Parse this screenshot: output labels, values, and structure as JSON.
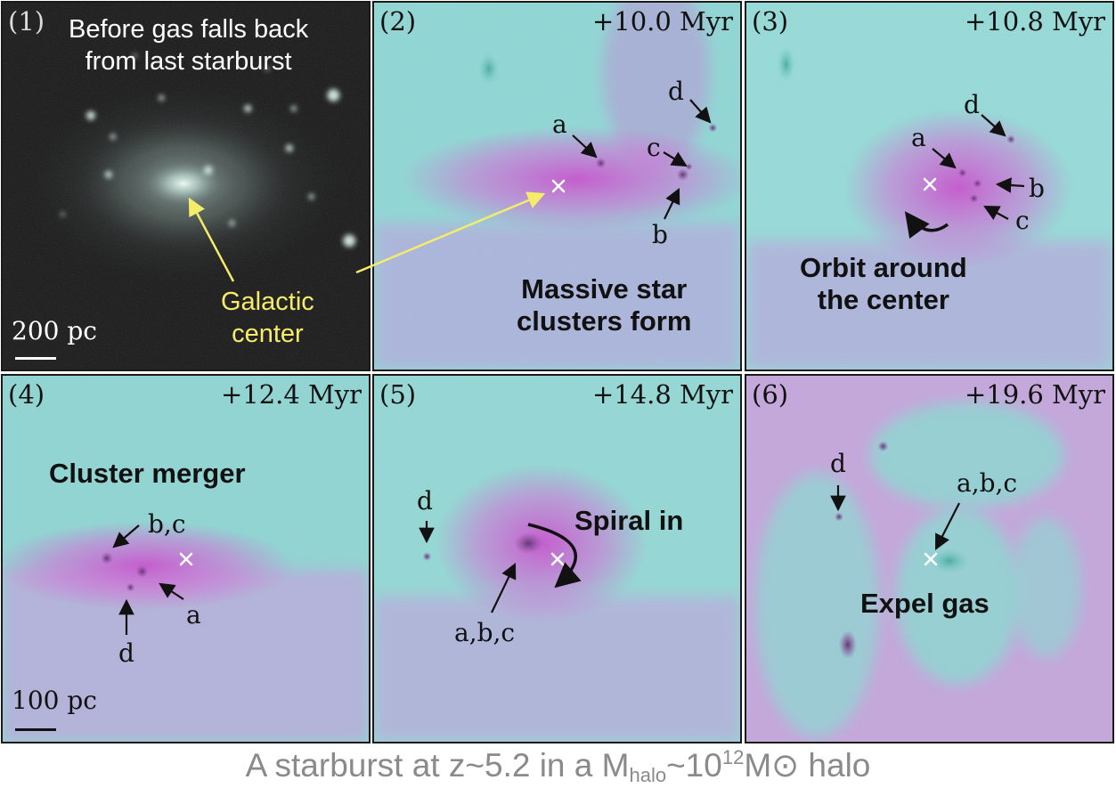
{
  "footer": {
    "prefix": "A starburst at z~5.2 in a M",
    "sub": "halo",
    "mid": "~10",
    "sup": "12",
    "suffix": "M⊙ halo"
  },
  "colors": {
    "gas_cyan": "#8fe0dc",
    "gas_magenta": "#d36ad8",
    "stars_bg": "#141414",
    "annotation_yellow": "#f5ec6a",
    "footer_gray": "#8a8a8a"
  },
  "panels": [
    {
      "id": "p1",
      "num": "(1)",
      "title": "Before gas falls back\nfrom last starburst",
      "scale": "200 pc",
      "callout": "Galactic\ncenter"
    },
    {
      "id": "p2",
      "num": "(2)",
      "time": "+10.0 Myr",
      "caption": "Massive star\nclusters form",
      "labels": {
        "a": "a",
        "b": "b",
        "c": "c",
        "d": "d"
      }
    },
    {
      "id": "p3",
      "num": "(3)",
      "time": "+10.8 Myr",
      "caption": "Orbit around\nthe center",
      "labels": {
        "a": "a",
        "b": "b",
        "c": "c",
        "d": "d"
      }
    },
    {
      "id": "p4",
      "num": "(4)",
      "time": "+12.4 Myr",
      "caption": "Cluster merger",
      "scale": "100 pc",
      "labels": {
        "bc": "b,c",
        "a": "a",
        "d": "d"
      }
    },
    {
      "id": "p5",
      "num": "(5)",
      "time": "+14.8 Myr",
      "caption": "Spiral in",
      "labels": {
        "d": "d",
        "abc": "a,b,c"
      }
    },
    {
      "id": "p6",
      "num": "(6)",
      "time": "+19.6 Myr",
      "caption": "Expel gas",
      "labels": {
        "d": "d",
        "abc": "a,b,c"
      }
    }
  ]
}
